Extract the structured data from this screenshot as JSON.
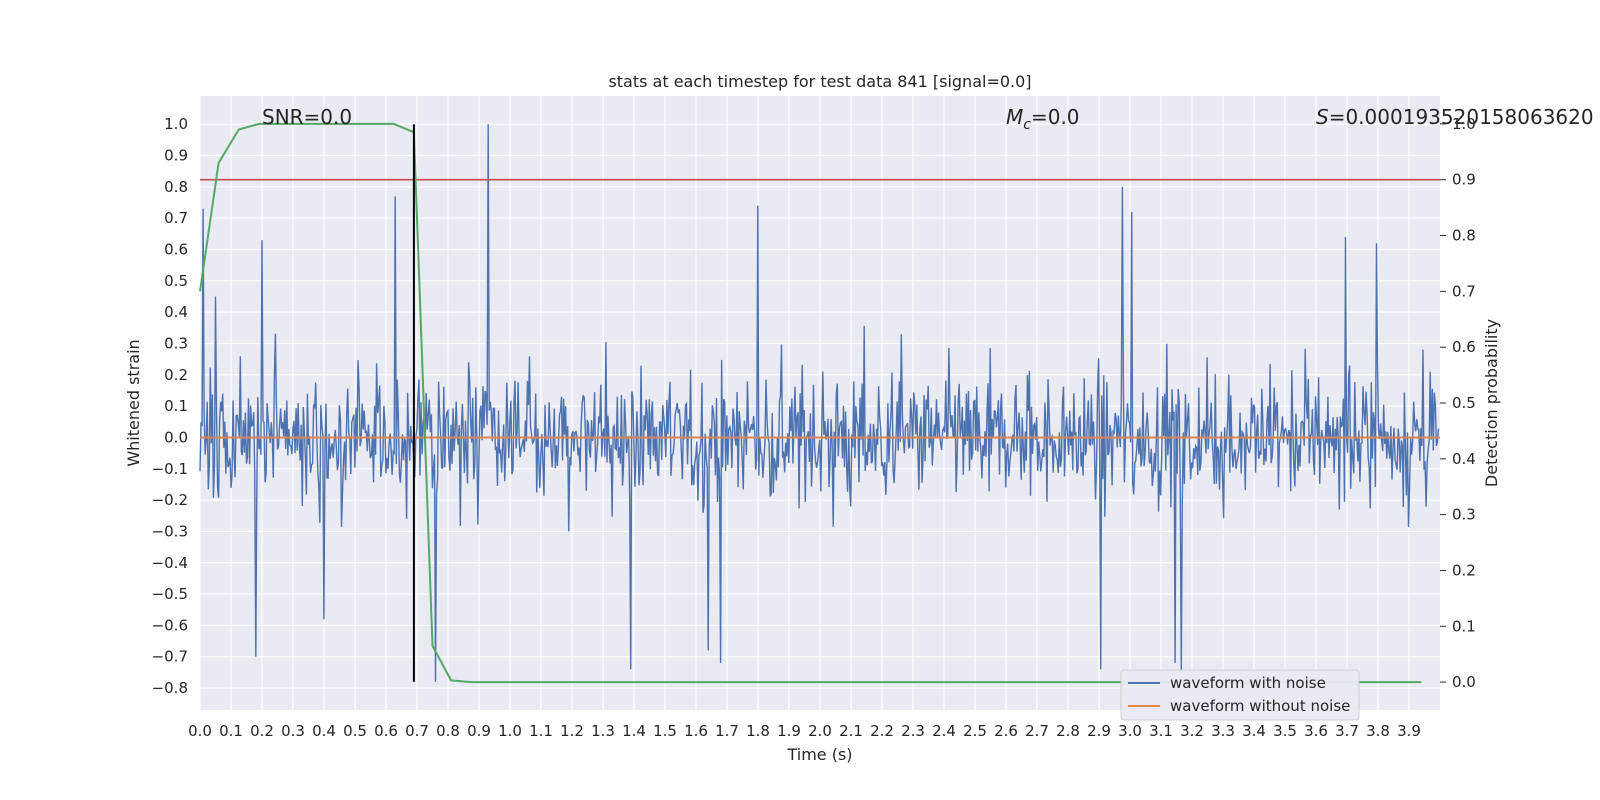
{
  "chart_data": {
    "type": "line",
    "title": "stats at each timestep for test data 841 [signal=0.0]",
    "xlabel": "Time (s)",
    "ylabel": "Whitened strain",
    "y2label": "Detection probability",
    "xlim": [
      0.0,
      4.0
    ],
    "ylim": [
      -0.87,
      1.09
    ],
    "y2lim": [
      -0.05,
      1.05
    ],
    "xticks": [
      "0.0",
      "0.1",
      "0.2",
      "0.3",
      "0.4",
      "0.5",
      "0.6",
      "0.7",
      "0.8",
      "0.9",
      "1.0",
      "1.1",
      "1.2",
      "1.3",
      "1.4",
      "1.5",
      "1.6",
      "1.7",
      "1.8",
      "1.9",
      "2.0",
      "2.1",
      "2.2",
      "2.3",
      "2.4",
      "2.5",
      "2.6",
      "2.7",
      "2.8",
      "2.9",
      "3.0",
      "3.1",
      "3.2",
      "3.3",
      "3.4",
      "3.5",
      "3.6",
      "3.7",
      "3.8",
      "3.9"
    ],
    "yticks": [
      "1.0",
      "0.9",
      "0.8",
      "0.7",
      "0.6",
      "0.5",
      "0.4",
      "0.3",
      "0.2",
      "0.1",
      "0.0",
      "−0.1",
      "−0.2",
      "−0.3",
      "−0.4",
      "−0.5",
      "−0.6",
      "−0.7",
      "−0.8"
    ],
    "y2ticks": [
      "1.0",
      "0.9",
      "0.8",
      "0.7",
      "0.6",
      "0.5",
      "0.4",
      "0.3",
      "0.2",
      "0.1",
      "0.0"
    ],
    "grid": true,
    "legend_position": "lower-right",
    "annotations": {
      "snr": "SNR=0.0",
      "mc_symbol": "M",
      "mc_subscript": "c",
      "mc_value": "=0.0",
      "s_symbol": "S",
      "s_value": "=0.000193520158063620"
    },
    "colors": {
      "background": "#eaeaf2",
      "grid": "#ffffff",
      "noisy": "#4c72b0",
      "clean": "#dd8452",
      "probability": "#55a868",
      "threshold": "#c44e52",
      "marker": "#000000"
    },
    "series": [
      {
        "name": "waveform with noise",
        "axis": "left",
        "style": "noise",
        "peaks": [
          {
            "t": 0.01,
            "v": 0.73
          },
          {
            "t": 0.05,
            "v": 0.45
          },
          {
            "t": 0.2,
            "v": 0.63
          },
          {
            "t": 0.63,
            "v": 0.77
          },
          {
            "t": 0.93,
            "v": 1.0
          },
          {
            "t": 1.8,
            "v": 0.74
          },
          {
            "t": 2.98,
            "v": 0.8
          },
          {
            "t": 3.01,
            "v": 0.72
          },
          {
            "t": 3.7,
            "v": 0.64
          },
          {
            "t": 3.8,
            "v": 0.62
          },
          {
            "t": 0.18,
            "v": -0.7
          },
          {
            "t": 0.4,
            "v": -0.58
          },
          {
            "t": 0.76,
            "v": -0.78
          },
          {
            "t": 1.39,
            "v": -0.74
          },
          {
            "t": 1.64,
            "v": -0.68
          },
          {
            "t": 1.68,
            "v": -0.72
          },
          {
            "t": 2.91,
            "v": -0.74
          },
          {
            "t": 3.17,
            "v": -0.75
          },
          {
            "t": 3.15,
            "v": -0.72
          }
        ]
      },
      {
        "name": "waveform without noise",
        "axis": "left",
        "x": [
          0.0,
          4.0
        ],
        "values": [
          0.0,
          0.0
        ]
      },
      {
        "axis": "right",
        "x": [
          0.0,
          0.06,
          0.125,
          0.19,
          0.25,
          0.31,
          0.375,
          0.44,
          0.5,
          0.56,
          0.625,
          0.69,
          0.75,
          0.81,
          0.875,
          0.94,
          1.0,
          2.0,
          3.0,
          3.94
        ],
        "values": [
          0.7,
          0.93,
          0.99,
          1.0,
          1.0,
          1.0,
          1.0,
          1.0,
          1.0,
          1.0,
          1.0,
          0.985,
          0.065,
          0.003,
          0.0,
          0.0,
          0.0,
          0.0,
          0.0,
          0.0
        ]
      },
      {
        "axis": "right",
        "x": [
          0.0,
          4.0
        ],
        "values": [
          0.9,
          0.9
        ]
      }
    ],
    "vline": {
      "x": 0.69,
      "ymin": -0.78,
      "ymax": 1.0
    }
  }
}
